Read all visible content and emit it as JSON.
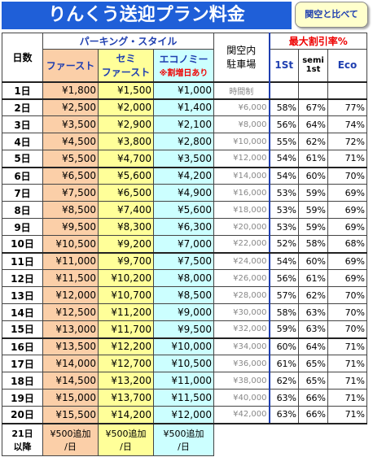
{
  "title": "りんくう送迎プラン料金",
  "badge": "関空と比べて",
  "header": {
    "days": "日数",
    "parking_style": "パーキング・スタイル",
    "first": "ファースト",
    "semi": "セミ\nファースト",
    "economy": "エコノミー",
    "economy_note": "※割増日あり",
    "kanku": "関空内\n駐車場",
    "discount": "最大割引率%",
    "d_first": "1St",
    "d_semi": "semi\n1st",
    "d_eco": "Eco"
  },
  "rows": [
    [
      "1日",
      "¥1,800",
      "¥1,500",
      "¥1,000",
      "時間制"
    ],
    [
      "2日",
      "¥2,500",
      "¥2,000",
      "¥1,400",
      "¥6,000",
      "58%",
      "67%",
      "77%"
    ],
    [
      "3日",
      "¥3,500",
      "¥2,900",
      "¥2,100",
      "¥8,000",
      "56%",
      "64%",
      "74%"
    ],
    [
      "4日",
      "¥4,500",
      "¥3,800",
      "¥2,800",
      "¥10,000",
      "55%",
      "62%",
      "72%"
    ],
    [
      "5日",
      "¥5,500",
      "¥4,700",
      "¥3,500",
      "¥12,000",
      "54%",
      "61%",
      "71%"
    ],
    [
      "6日",
      "¥6,500",
      "¥5,600",
      "¥4,200",
      "¥14,000",
      "54%",
      "60%",
      "70%"
    ],
    [
      "7日",
      "¥7,500",
      "¥6,500",
      "¥4,900",
      "¥16,000",
      "53%",
      "59%",
      "69%"
    ],
    [
      "8日",
      "¥8,500",
      "¥7,400",
      "¥5,600",
      "¥18,000",
      "53%",
      "59%",
      "69%"
    ],
    [
      "9日",
      "¥9,500",
      "¥8,300",
      "¥6,300",
      "¥20,000",
      "53%",
      "59%",
      "69%"
    ],
    [
      "10日",
      "¥10,500",
      "¥9,200",
      "¥7,000",
      "¥22,000",
      "52%",
      "58%",
      "68%"
    ],
    [
      "11日",
      "¥11,000",
      "¥9,700",
      "¥7,500",
      "¥24,000",
      "54%",
      "60%",
      "69%"
    ],
    [
      "12日",
      "¥11,500",
      "¥10,200",
      "¥8,000",
      "¥26,000",
      "56%",
      "61%",
      "69%"
    ],
    [
      "13日",
      "¥12,000",
      "¥10,700",
      "¥8,500",
      "¥28,000",
      "57%",
      "62%",
      "70%"
    ],
    [
      "14日",
      "¥12,500",
      "¥11,200",
      "¥9,000",
      "¥30,000",
      "58%",
      "63%",
      "70%"
    ],
    [
      "15日",
      "¥13,000",
      "¥11,700",
      "¥9,500",
      "¥32,000",
      "59%",
      "63%",
      "70%"
    ],
    [
      "16日",
      "¥13,500",
      "¥12,200",
      "¥10,000",
      "¥34,000",
      "60%",
      "64%",
      "71%"
    ],
    [
      "17日",
      "¥14,000",
      "¥12,700",
      "¥10,500",
      "¥36,000",
      "61%",
      "65%",
      "71%"
    ],
    [
      "18日",
      "¥14,500",
      "¥13,200",
      "¥11,000",
      "¥38,000",
      "62%",
      "65%",
      "71%"
    ],
    [
      "19日",
      "¥15,000",
      "¥13,700",
      "¥11,500",
      "¥40,000",
      "63%",
      "66%",
      "71%"
    ],
    [
      "20日",
      "¥15,500",
      "¥14,200",
      "¥12,000",
      "¥42,000",
      "63%",
      "66%",
      "71%"
    ],
    [
      "21日\n以降",
      "¥500追加\n/日",
      "¥500追加\n/日",
      "¥500追加\n/日"
    ]
  ]
}
